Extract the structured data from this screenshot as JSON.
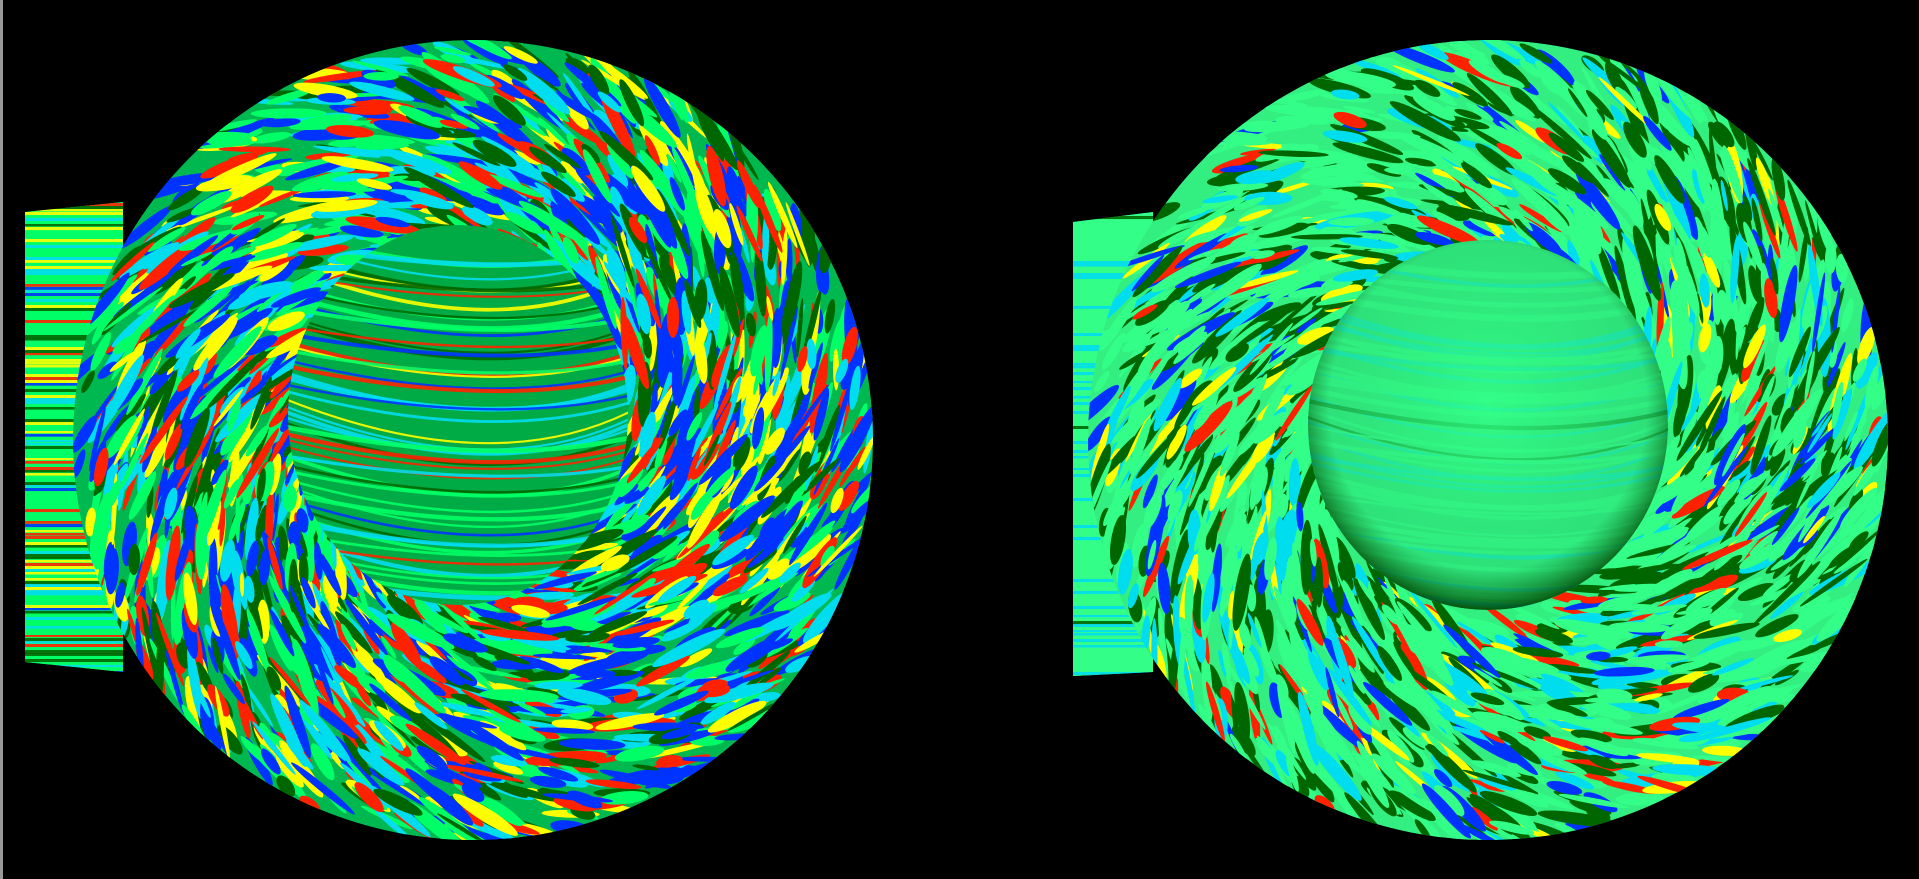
{
  "figure": {
    "panels": [
      {
        "id": "left",
        "view": "tube-visualization",
        "palette": [
          "#0033ff",
          "#00ddee",
          "#00ff66",
          "#006600",
          "#ffff00",
          "#ff2200"
        ],
        "dominant": "turbulent"
      },
      {
        "id": "right",
        "view": "tube-visualization",
        "palette": [
          "#0033ff",
          "#00ddee",
          "#33ff88",
          "#006600",
          "#ffff00",
          "#ff2200"
        ],
        "dominant": "smooth-green"
      }
    ],
    "background": "#000000"
  }
}
